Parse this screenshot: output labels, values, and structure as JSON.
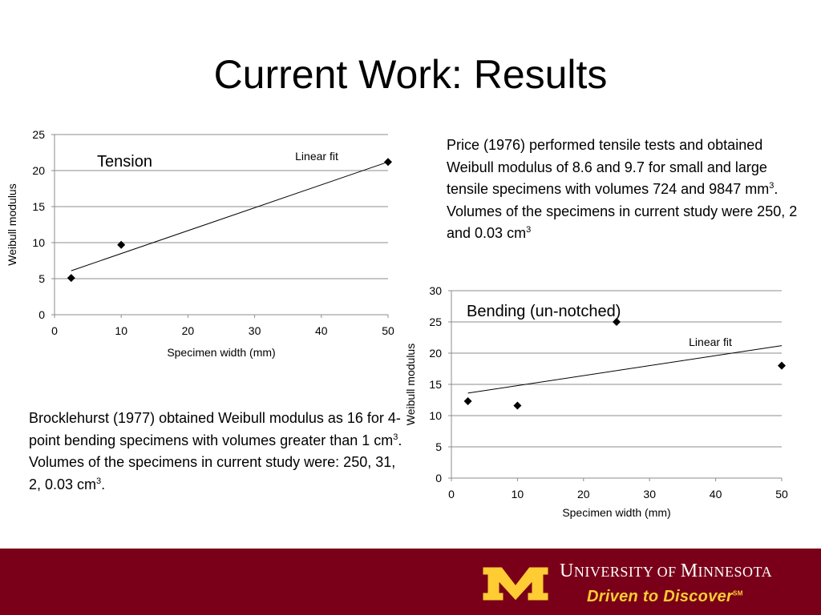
{
  "slide": {
    "title": "Current Work: Results"
  },
  "paragraphs": {
    "price": {
      "text_before_sup1": "Price (1976) performed tensile tests and obtained Weibull modulus of 8.6 and 9.7 for small and large tensile specimens with volumes 724 and 9847 mm",
      "sup1": "3",
      "text_before_sup2": ". Volumes of the specimens in current study were 250, 2 and 0.03 cm",
      "sup2": "3"
    },
    "brocklehurst": {
      "text_before_sup1": "Brocklehurst (1977) obtained Weibull modulus as 16 for 4-point bending specimens with volumes greater than 1 cm",
      "sup1": "3",
      "text_before_sup2": ". Volumes of the specimens in current study were: 250, 31, 2, 0.03 cm",
      "sup2": "3",
      "text_end": "."
    }
  },
  "footer": {
    "university_first": "U",
    "university_rest1": "NIVERSITY OF ",
    "university_m": "M",
    "university_rest2": "INNESOTA",
    "tagline": "Driven to Discover",
    "tagline_mark": "SM",
    "colors": {
      "maroon": "#7a0019",
      "gold": "#ffcc33"
    }
  },
  "chart_data": [
    {
      "type": "scatter",
      "title": "Tension",
      "xlabel": "Specimen width (mm)",
      "ylabel": "Weibull modulus",
      "xlim": [
        0,
        50
      ],
      "ylim": [
        0,
        25
      ],
      "xticks": [
        0,
        10,
        20,
        30,
        40,
        50
      ],
      "yticks": [
        0,
        5,
        10,
        15,
        20,
        25
      ],
      "grid": true,
      "points": [
        {
          "x": 2.5,
          "y": 5.1
        },
        {
          "x": 10,
          "y": 9.7
        },
        {
          "x": 50,
          "y": 21.2
        }
      ],
      "fit": {
        "label": "Linear fit",
        "x": [
          2.5,
          50
        ],
        "y": [
          6.1,
          21.2
        ]
      }
    },
    {
      "type": "scatter",
      "title": "Bending (un-notched)",
      "xlabel": "Specimen width (mm)",
      "ylabel": "Weibull modulus",
      "xlim": [
        0,
        50
      ],
      "ylim": [
        0,
        30
      ],
      "xticks": [
        0,
        10,
        20,
        30,
        40,
        50
      ],
      "yticks": [
        0,
        5,
        10,
        15,
        20,
        25,
        30
      ],
      "grid": true,
      "points": [
        {
          "x": 2.5,
          "y": 12.3
        },
        {
          "x": 10,
          "y": 11.6
        },
        {
          "x": 25,
          "y": 25.0
        },
        {
          "x": 50,
          "y": 18.0
        }
      ],
      "fit": {
        "label": "Linear fit",
        "x": [
          2.5,
          50
        ],
        "y": [
          13.6,
          21.2
        ]
      }
    }
  ]
}
